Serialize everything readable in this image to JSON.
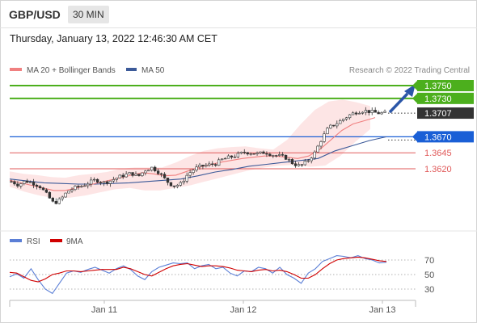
{
  "header": {
    "pair": "GBP/USD",
    "timeframe": "30 MIN"
  },
  "timestamp": "Thursday, January 13, 2022 12:46:30 AM CET",
  "legend": {
    "bb_label": "MA 20 + Bollinger Bands",
    "ma50_label": "MA 50",
    "source": "Research © 2022 Trading Central",
    "rsi_label": "RSI",
    "ma9_label": "9MA"
  },
  "colors": {
    "bb": "#f08080",
    "ma50": "#3c5a99",
    "rsi": "#5b7fd6",
    "ma9": "#d00000",
    "resistance": "#4caf1d",
    "support": "#1a5fd6",
    "level_red": "#e05a5a",
    "current": "#333333"
  },
  "chart_data": [
    {
      "type": "line",
      "subtype": "candlestick",
      "series": [
        {
          "name": "MA 20 + Bollinger Bands"
        },
        {
          "name": "MA 50"
        }
      ],
      "ylim": [
        1.3535,
        1.3765
      ],
      "price_levels": [
        {
          "label": "1.3750",
          "value": 1.375,
          "kind": "resistance"
        },
        {
          "label": "1.3730",
          "value": 1.373,
          "kind": "resistance"
        },
        {
          "label": "1.3707",
          "value": 1.3707,
          "kind": "current"
        },
        {
          "label": "1.3670",
          "value": 1.367,
          "kind": "support"
        },
        {
          "label": "1.3645",
          "value": 1.3645,
          "kind": "level"
        },
        {
          "label": "1.3620",
          "value": 1.362,
          "kind": "level"
        }
      ],
      "x_ticks": [
        "Jan 11",
        "Jan 12",
        "Jan 13"
      ],
      "close_path": [
        1.36,
        1.3595,
        1.3601,
        1.3598,
        1.3593,
        1.358,
        1.3566,
        1.3572,
        1.3585,
        1.359,
        1.3593,
        1.3598,
        1.3603,
        1.3598,
        1.3601,
        1.3606,
        1.361,
        1.3613,
        1.3608,
        1.3618,
        1.3622,
        1.3614,
        1.3601,
        1.3593,
        1.3596,
        1.3611,
        1.362,
        1.3624,
        1.3626,
        1.3628,
        1.3635,
        1.3638,
        1.3641,
        1.3646,
        1.3645,
        1.3643,
        1.3646,
        1.3642,
        1.364,
        1.3637,
        1.3628,
        1.3624,
        1.3632,
        1.3644,
        1.3666,
        1.3684,
        1.369,
        1.3697,
        1.3704,
        1.3709,
        1.3711,
        1.3709,
        1.3707,
        1.3707
      ],
      "ma20_path": [
        1.3602,
        1.3598,
        1.3594,
        1.359,
        1.3586,
        1.3586,
        1.359,
        1.3594,
        1.3598,
        1.3602,
        1.3606,
        1.361,
        1.3614,
        1.3612,
        1.3609,
        1.361,
        1.3616,
        1.3622,
        1.3626,
        1.363,
        1.3633,
        1.3636,
        1.3638,
        1.364,
        1.364,
        1.3638,
        1.3636,
        1.364,
        1.365,
        1.3665,
        1.368,
        1.369,
        1.3695,
        1.37
      ],
      "bb_upper_path": [
        1.3616,
        1.3612,
        1.361,
        1.3607,
        1.3606,
        1.361,
        1.3612,
        1.3615,
        1.362,
        1.3622,
        1.3622,
        1.3622,
        1.363,
        1.364,
        1.3648,
        1.3652,
        1.3654,
        1.3655,
        1.3652,
        1.365,
        1.3665,
        1.369,
        1.3712,
        1.3725,
        1.3728,
        1.3724,
        1.3718
      ],
      "bb_lower_path": [
        1.3592,
        1.3584,
        1.3578,
        1.3574,
        1.3575,
        1.3578,
        1.3583,
        1.3588,
        1.359,
        1.3586,
        1.3586,
        1.359,
        1.3594,
        1.36,
        1.3606,
        1.3612,
        1.3618,
        1.3622,
        1.3625,
        1.3626,
        1.3623,
        1.3625,
        1.364,
        1.3662,
        1.3682
      ],
      "ma50_path": [
        1.3604,
        1.3601,
        1.3598,
        1.3597,
        1.3596,
        1.3596,
        1.3597,
        1.3598,
        1.36,
        1.3602,
        1.3604,
        1.3609,
        1.3615,
        1.3619,
        1.3624,
        1.3627,
        1.363,
        1.3633,
        1.3636,
        1.3648,
        1.3656,
        1.3664,
        1.367
      ]
    },
    {
      "type": "line",
      "series": [
        {
          "name": "RSI"
        },
        {
          "name": "9MA"
        }
      ],
      "ylim": [
        20,
        80
      ],
      "y_ticks": [
        70,
        50,
        30
      ],
      "rsi_path": [
        47,
        51,
        45,
        58,
        43,
        30,
        24,
        38,
        52,
        55,
        53,
        57,
        60,
        56,
        52,
        58,
        62,
        57,
        48,
        43,
        54,
        60,
        63,
        66,
        65,
        66,
        58,
        62,
        64,
        58,
        60,
        52,
        48,
        55,
        54,
        60,
        58,
        52,
        60,
        50,
        45,
        38,
        52,
        58,
        68,
        72,
        76,
        75,
        73,
        76,
        72,
        70,
        66,
        67
      ],
      "ma9_path": [
        53,
        52,
        47,
        42,
        40,
        44,
        50,
        52,
        55,
        55,
        54,
        55,
        56,
        57,
        57,
        57,
        60,
        58,
        54,
        50,
        48,
        53,
        58,
        62,
        64,
        65,
        63,
        61,
        62,
        62,
        61,
        59,
        56,
        55,
        54,
        56,
        57,
        55,
        56,
        54,
        50,
        45,
        45,
        50,
        58,
        65,
        70,
        72,
        73,
        74,
        73,
        71,
        69,
        68
      ]
    }
  ]
}
